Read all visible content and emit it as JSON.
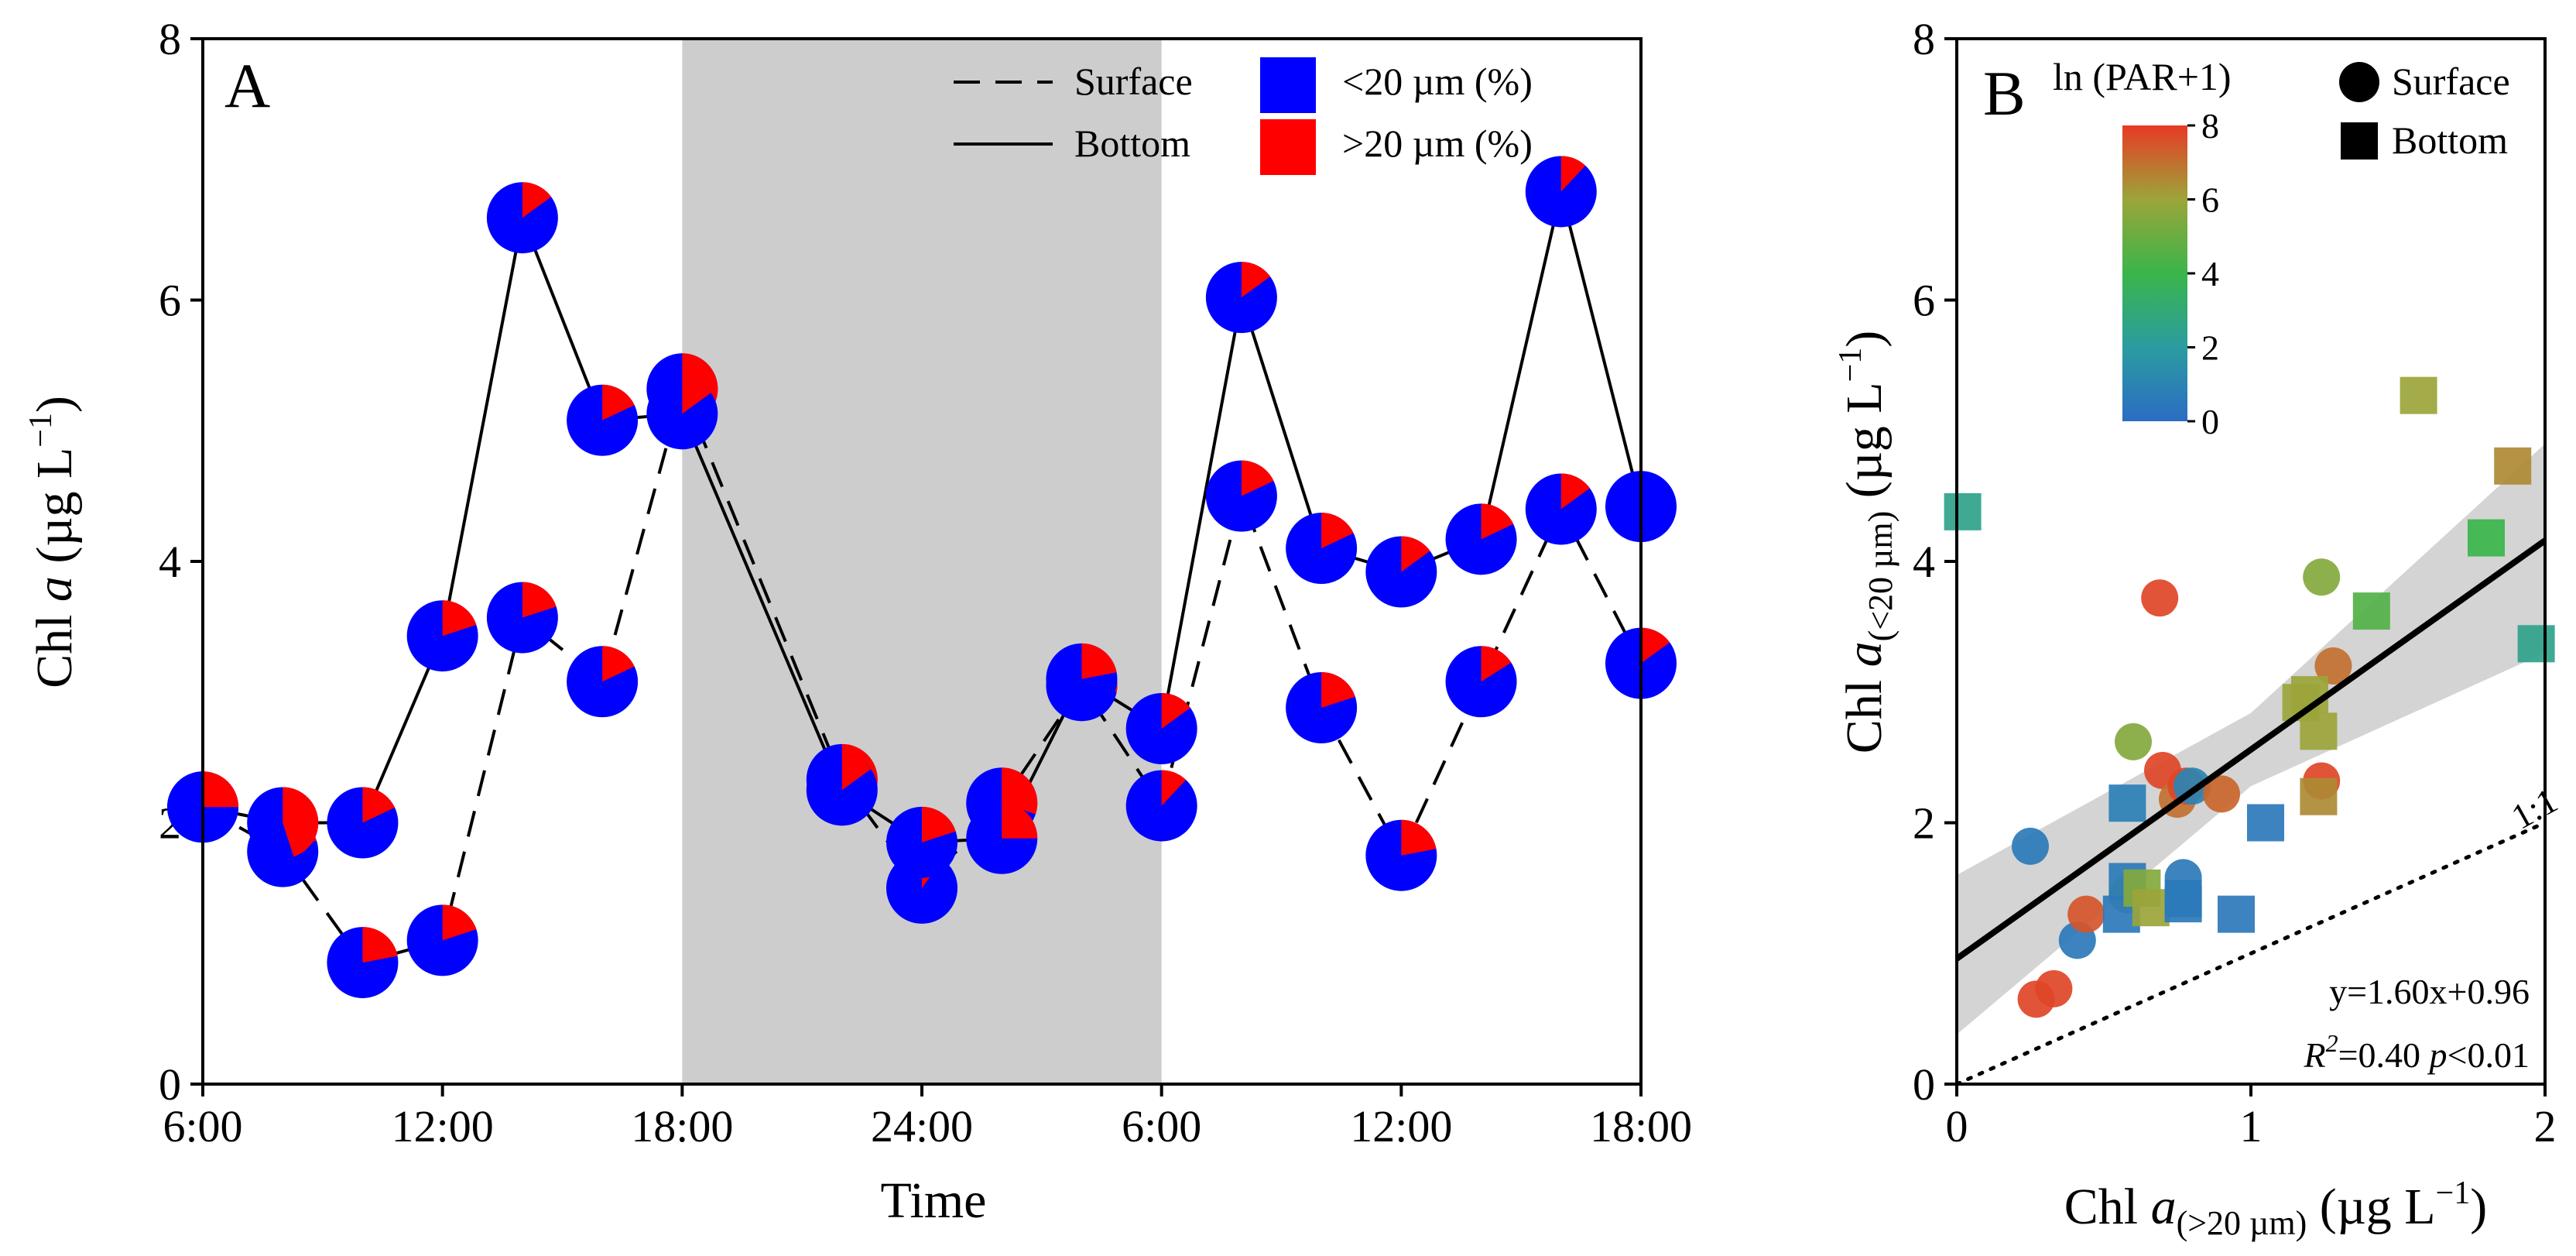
{
  "chart_data": [
    {
      "panel": "A",
      "type": "line-pie",
      "xlabel": "Time",
      "ylabel_prefix": "Chl ",
      "ylabel_italic": "a",
      "ylabel_suffix": " (µg L",
      "ylabel_sup": "−1",
      "ylabel_close": ")",
      "ylim": [
        0,
        8
      ],
      "yticks": [
        0,
        2,
        4,
        6,
        8
      ],
      "xlim": [
        0,
        36
      ],
      "x_ticks": [
        {
          "x": 0,
          "label": "6:00"
        },
        {
          "x": 6,
          "label": "12:00"
        },
        {
          "x": 12,
          "label": "18:00"
        },
        {
          "x": 18,
          "label": "24:00"
        },
        {
          "x": 24,
          "label": "6:00"
        },
        {
          "x": 30,
          "label": "12:00"
        },
        {
          "x": 36,
          "label": "18:00"
        }
      ],
      "night_shading": [
        12,
        24
      ],
      "legend": {
        "surface": "Surface",
        "bottom": "Bottom",
        "small": "<20 µm (%)",
        "large": ">20 µm (%)"
      },
      "colors": {
        "small": "#0000ff",
        "large": "#ff0000",
        "night": "#cdcdcd"
      },
      "series": [
        {
          "name": "Surface",
          "style": "dashed",
          "x": [
            0,
            2,
            4,
            6,
            8,
            10,
            12,
            16,
            18,
            20,
            22,
            24,
            26,
            28,
            30,
            32,
            34,
            36
          ],
          "values": [
            2.12,
            1.78,
            0.93,
            1.1,
            3.57,
            3.08,
            5.32,
            2.33,
            1.5,
            2.15,
            3.05,
            2.13,
            4.5,
            2.88,
            1.75,
            3.08,
            4.4,
            3.22
          ],
          "small_fraction": [
            0.72,
            0.8,
            0.78,
            0.8,
            0.8,
            0.82,
            0.68,
            0.72,
            0.9,
            0.7,
            0.72,
            0.88,
            0.82,
            0.8,
            0.78,
            0.84,
            0.85,
            0.85
          ]
        },
        {
          "name": "Bottom",
          "style": "solid",
          "x": [
            0,
            2,
            4,
            6,
            8,
            10,
            12,
            16,
            18,
            20,
            22,
            24,
            26,
            28,
            30,
            32,
            34,
            36
          ],
          "values": [
            2.12,
            2.0,
            2.0,
            3.43,
            6.63,
            5.08,
            5.13,
            2.25,
            1.85,
            1.88,
            3.1,
            2.72,
            6.02,
            4.1,
            3.92,
            4.17,
            6.83,
            4.42
          ],
          "small_fraction": [
            0.75,
            0.55,
            0.82,
            0.8,
            0.85,
            0.82,
            0.85,
            0.85,
            0.8,
            0.75,
            0.78,
            0.85,
            0.85,
            0.82,
            0.85,
            0.82,
            0.88,
            1.0
          ]
        }
      ]
    },
    {
      "panel": "B",
      "type": "scatter",
      "xlabel_prefix": "Chl ",
      "xlabel_italic": "a",
      "xlabel_sub": "(>20 µm)",
      "xlabel_suffix": " (µg L",
      "xlabel_sup": "−1",
      "xlabel_close": ")",
      "ylabel_prefix": "Chl ",
      "ylabel_italic": "a",
      "ylabel_sub": "(<20 µm)",
      "ylabel_suffix": " (µg L",
      "ylabel_sup": "−1",
      "ylabel_close": ")",
      "xlim": [
        0,
        2
      ],
      "ylim": [
        0,
        8
      ],
      "xticks": [
        0,
        1,
        2
      ],
      "yticks": [
        0,
        2,
        4,
        6,
        8
      ],
      "colorbar": {
        "label": "ln (PAR+1)",
        "min": 0,
        "max": 8,
        "ticks": [
          0,
          2,
          4,
          6,
          8
        ]
      },
      "marker_legend": {
        "surface": "Surface",
        "bottom": "Bottom"
      },
      "regression": {
        "slope": 1.6,
        "intercept": 0.96,
        "ci_low_at_x0": 0.38,
        "ci_high_at_x0": 1.6,
        "ci_low_at_x2": 3.3,
        "ci_high_at_x2": 4.9
      },
      "identity_line_label": "1:1",
      "equation": "y=1.60x+0.96",
      "r2_label": "R",
      "r2_sup": "2",
      "r2_text": "=0.40 ",
      "p_label": "p",
      "p_text": "<0.01",
      "points": [
        {
          "x": 0.27,
          "y": 0.65,
          "par": 7.8,
          "shape": "circle"
        },
        {
          "x": 0.33,
          "y": 0.73,
          "par": 7.8,
          "shape": "circle"
        },
        {
          "x": 0.41,
          "y": 1.1,
          "par": 0.5,
          "shape": "circle"
        },
        {
          "x": 0.44,
          "y": 1.3,
          "par": 7.5,
          "shape": "circle"
        },
        {
          "x": 0.25,
          "y": 1.82,
          "par": 0.6,
          "shape": "circle"
        },
        {
          "x": 0.6,
          "y": 2.62,
          "par": 5.5,
          "shape": "circle"
        },
        {
          "x": 0.58,
          "y": 1.45,
          "par": 5.5,
          "shape": "circle"
        },
        {
          "x": 0.69,
          "y": 3.72,
          "par": 7.8,
          "shape": "circle"
        },
        {
          "x": 0.7,
          "y": 2.4,
          "par": 7.8,
          "shape": "circle"
        },
        {
          "x": 0.75,
          "y": 2.18,
          "par": 7.0,
          "shape": "circle"
        },
        {
          "x": 0.78,
          "y": 2.28,
          "par": 7.8,
          "shape": "circle"
        },
        {
          "x": 0.8,
          "y": 2.28,
          "par": 1.0,
          "shape": "circle"
        },
        {
          "x": 0.9,
          "y": 2.22,
          "par": 7.2,
          "shape": "circle"
        },
        {
          "x": 0.77,
          "y": 1.58,
          "par": 0.6,
          "shape": "circle"
        },
        {
          "x": 1.24,
          "y": 3.88,
          "par": 5.5,
          "shape": "circle"
        },
        {
          "x": 1.28,
          "y": 3.2,
          "par": 7.0,
          "shape": "circle"
        },
        {
          "x": 1.24,
          "y": 2.32,
          "par": 7.8,
          "shape": "circle"
        },
        {
          "x": 0.02,
          "y": 4.38,
          "par": 2.5,
          "shape": "square"
        },
        {
          "x": 0.58,
          "y": 2.15,
          "par": 0.8,
          "shape": "square"
        },
        {
          "x": 0.58,
          "y": 1.55,
          "par": 0.6,
          "shape": "square"
        },
        {
          "x": 0.56,
          "y": 1.3,
          "par": 0.5,
          "shape": "square"
        },
        {
          "x": 0.63,
          "y": 1.5,
          "par": 5.5,
          "shape": "square"
        },
        {
          "x": 0.66,
          "y": 1.35,
          "par": 6.0,
          "shape": "square"
        },
        {
          "x": 0.77,
          "y": 1.42,
          "par": 0.6,
          "shape": "square"
        },
        {
          "x": 0.77,
          "y": 1.38,
          "par": 0.6,
          "shape": "square"
        },
        {
          "x": 0.95,
          "y": 1.3,
          "par": 0.5,
          "shape": "square"
        },
        {
          "x": 1.05,
          "y": 2.0,
          "par": 0.5,
          "shape": "square"
        },
        {
          "x": 1.17,
          "y": 2.92,
          "par": 6.0,
          "shape": "square"
        },
        {
          "x": 1.2,
          "y": 2.98,
          "par": 6.0,
          "shape": "square"
        },
        {
          "x": 1.23,
          "y": 2.7,
          "par": 6.0,
          "shape": "square"
        },
        {
          "x": 1.23,
          "y": 2.2,
          "par": 6.5,
          "shape": "square"
        },
        {
          "x": 1.41,
          "y": 3.62,
          "par": 4.5,
          "shape": "square"
        },
        {
          "x": 1.57,
          "y": 5.27,
          "par": 6.0,
          "shape": "square"
        },
        {
          "x": 1.8,
          "y": 4.18,
          "par": 4.0,
          "shape": "square"
        },
        {
          "x": 1.89,
          "y": 4.73,
          "par": 6.5,
          "shape": "square"
        },
        {
          "x": 1.97,
          "y": 3.37,
          "par": 2.5,
          "shape": "square"
        }
      ]
    }
  ]
}
